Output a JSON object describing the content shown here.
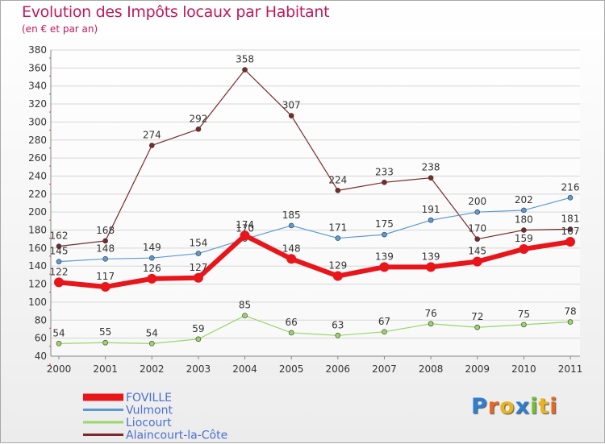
{
  "chart_data": {
    "type": "line",
    "title": "Evolution des Impôts locaux par Habitant",
    "subtitle": "(en € et par an)",
    "x": [
      "2000",
      "2001",
      "2002",
      "2003",
      "2004",
      "2005",
      "2006",
      "2007",
      "2008",
      "2009",
      "2010",
      "2011"
    ],
    "ylim": [
      40,
      380
    ],
    "yticks": [
      40,
      60,
      80,
      100,
      120,
      140,
      160,
      180,
      200,
      220,
      240,
      260,
      280,
      300,
      320,
      340,
      360,
      380
    ],
    "grid": "horizontal",
    "legend_position": "bottom-left",
    "series": [
      {
        "name": "FOVILLE",
        "color": "#e8151b",
        "values": [
          122,
          117,
          126,
          127,
          174,
          148,
          129,
          139,
          139,
          145,
          159,
          167
        ]
      },
      {
        "name": "Vulmont",
        "color": "#5b9bd5",
        "values": [
          145,
          148,
          149,
          154,
          170,
          185,
          171,
          175,
          191,
          200,
          202,
          216
        ]
      },
      {
        "name": "Liocourt",
        "color": "#9ad66a",
        "values": [
          54,
          55,
          54,
          59,
          85,
          66,
          63,
          67,
          76,
          72,
          75,
          78
        ]
      },
      {
        "name": "Alaincourt-la-Côte",
        "color": "#7a2a2a",
        "values": [
          162,
          168,
          274,
          292,
          358,
          307,
          224,
          233,
          238,
          170,
          180,
          181
        ]
      }
    ]
  },
  "logo": {
    "text": "Proxiti",
    "letter_colors": [
      "#2f7fd0",
      "#e8681e",
      "#e8b51e",
      "#2f7fd0",
      "#6fbf3a",
      "#e8b51e",
      "#e8681e"
    ]
  }
}
